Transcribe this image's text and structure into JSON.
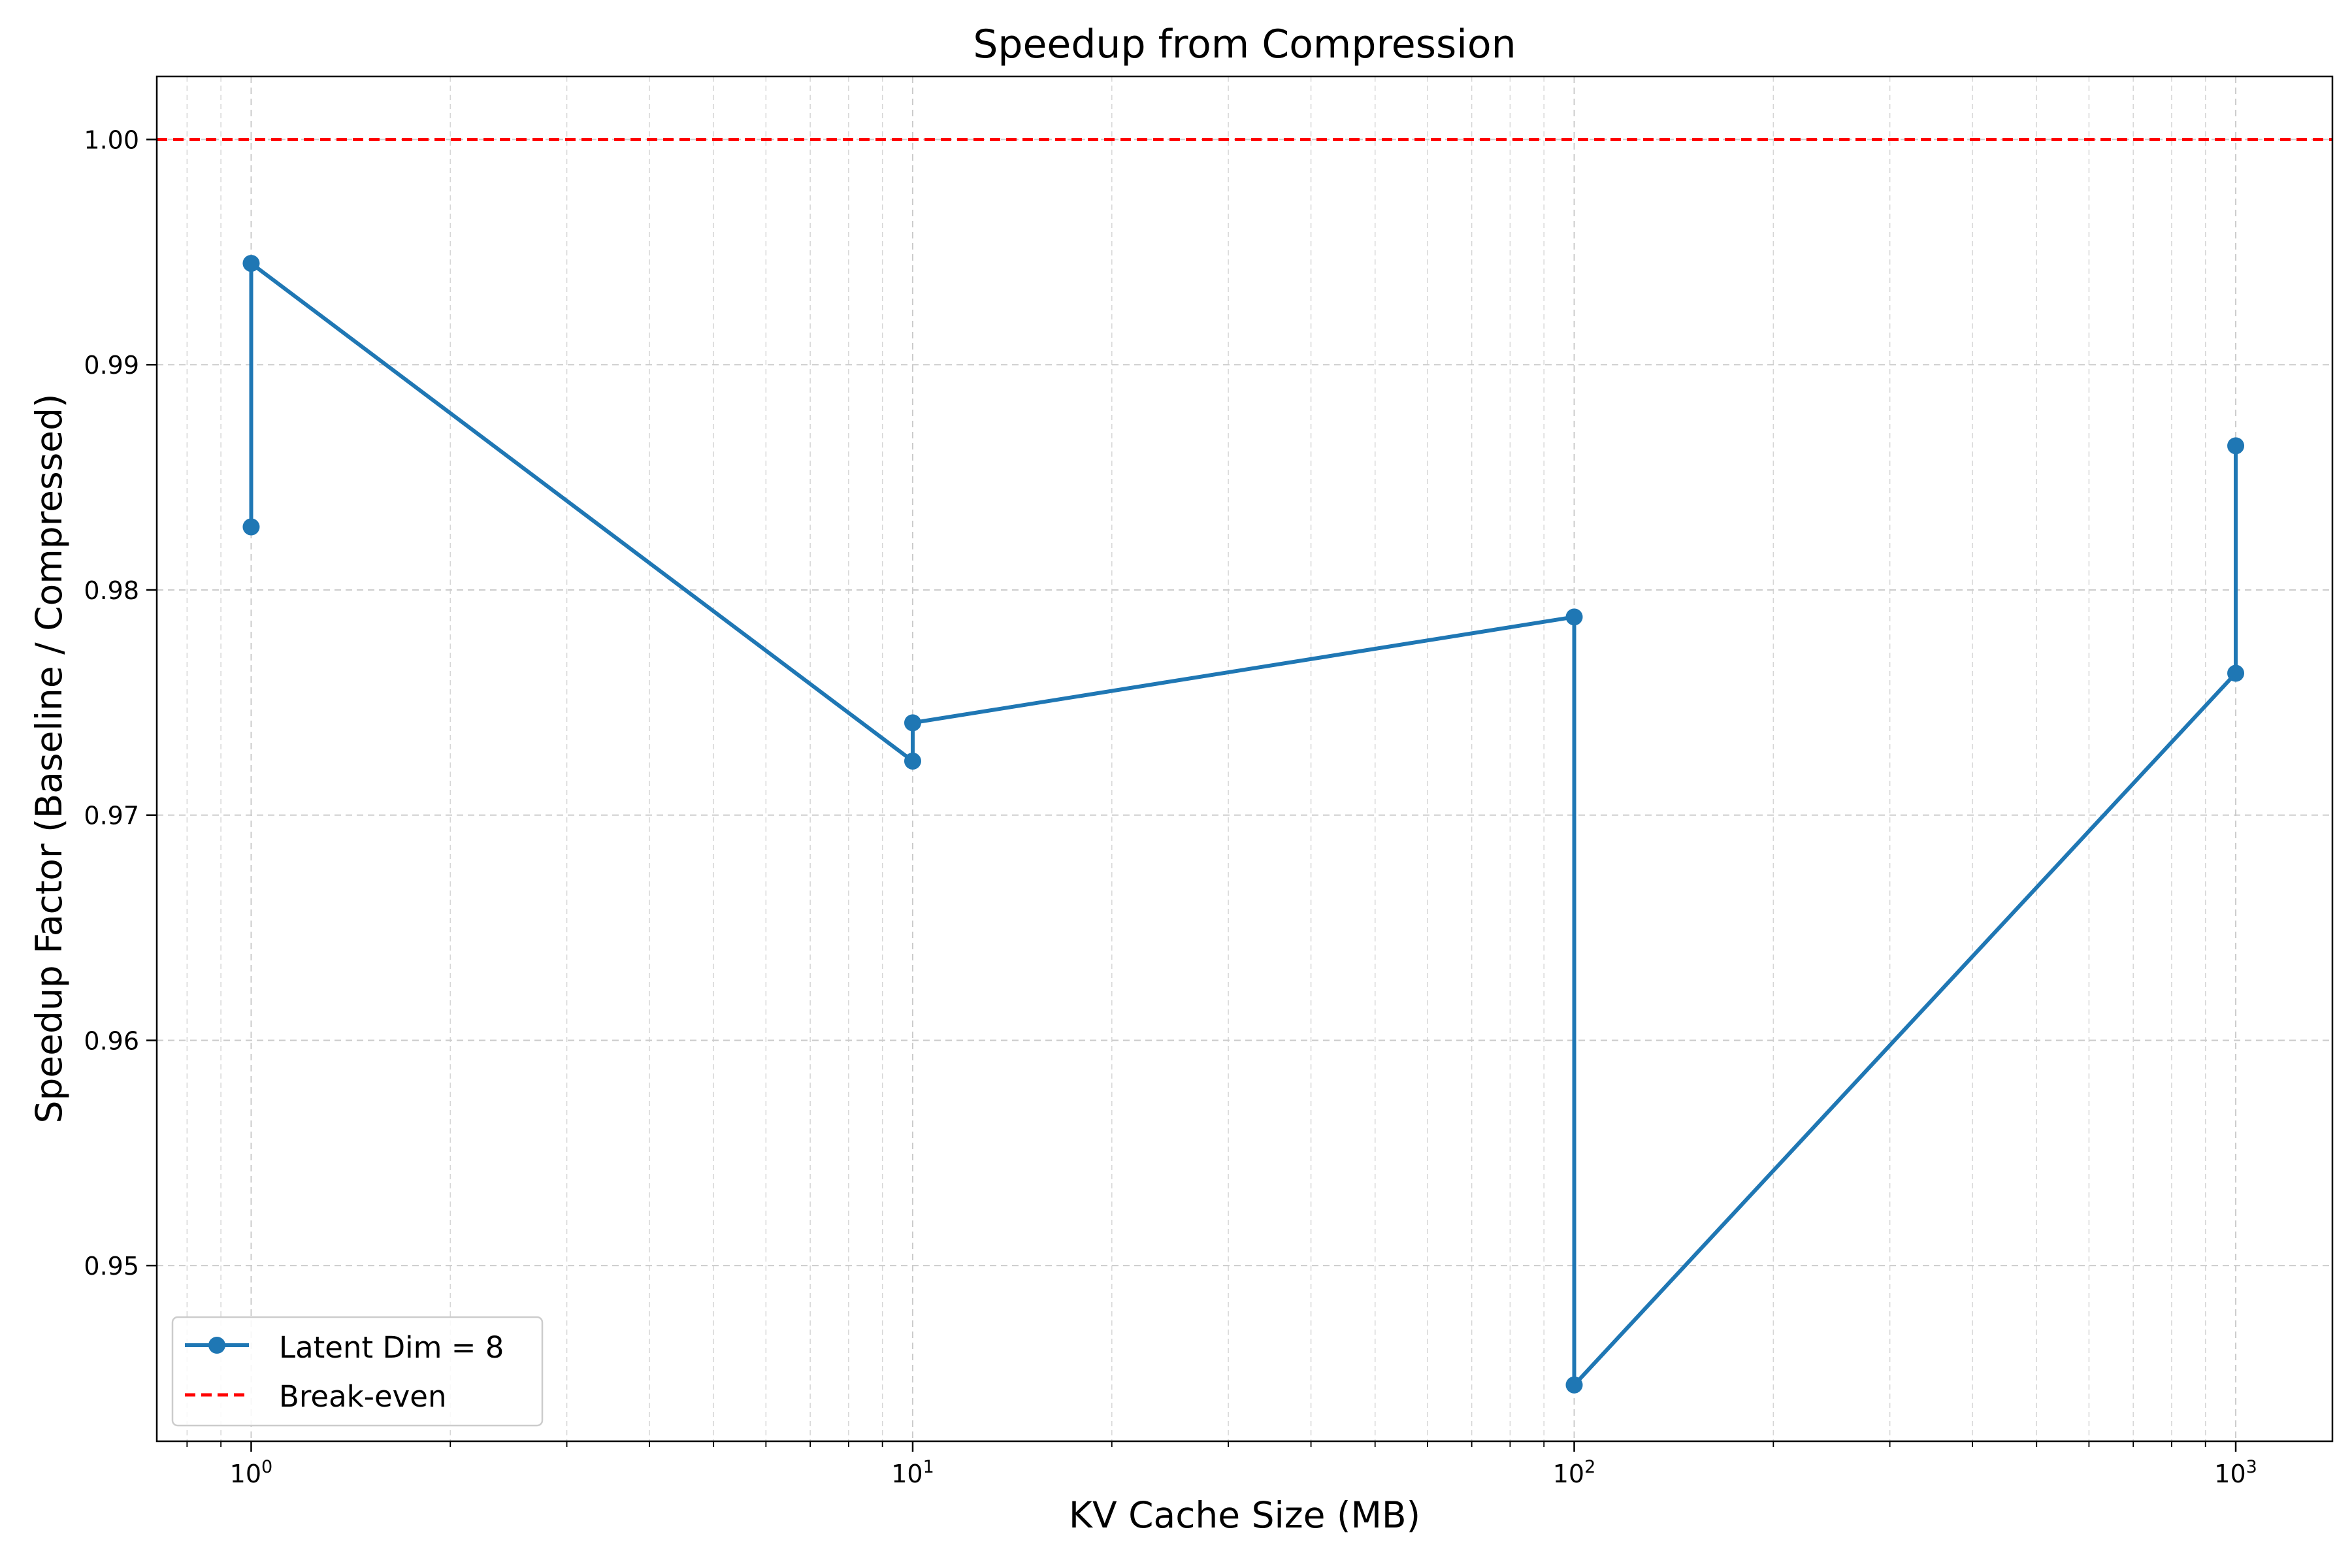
{
  "chart_data": {
    "type": "line",
    "title": "Speedup from Compression",
    "xlabel": "KV Cache Size (MB)",
    "ylabel": "Speedup Factor (Baseline / Compressed)",
    "x_scale": "log",
    "xlim": [
      0.72,
      1400
    ],
    "ylim": [
      0.9422,
      1.0028
    ],
    "x_ticks": [
      {
        "value": 1,
        "base": "10",
        "exp": "0"
      },
      {
        "value": 10,
        "base": "10",
        "exp": "1"
      },
      {
        "value": 100,
        "base": "10",
        "exp": "2"
      },
      {
        "value": 1000,
        "base": "10",
        "exp": "3"
      }
    ],
    "y_ticks": [
      {
        "value": 0.95,
        "label": "0.95"
      },
      {
        "value": 0.96,
        "label": "0.96"
      },
      {
        "value": 0.97,
        "label": "0.97"
      },
      {
        "value": 0.98,
        "label": "0.98"
      },
      {
        "value": 0.99,
        "label": "0.99"
      },
      {
        "value": 1.0,
        "label": "1.00"
      }
    ],
    "grid": true,
    "legend_position": "lower-left",
    "series": [
      {
        "name": "Latent Dim = 8",
        "color": "#1f77b4",
        "marker": "circle",
        "x": [
          1,
          1,
          10,
          10,
          100,
          100,
          1000,
          1000
        ],
        "y": [
          0.9828,
          0.9945,
          0.9724,
          0.9741,
          0.9788,
          0.9447,
          0.9763,
          0.9864
        ]
      }
    ],
    "reference_lines": [
      {
        "name": "Break-even",
        "y": 1.0,
        "color": "#ff0000",
        "style": "dashed"
      }
    ]
  }
}
